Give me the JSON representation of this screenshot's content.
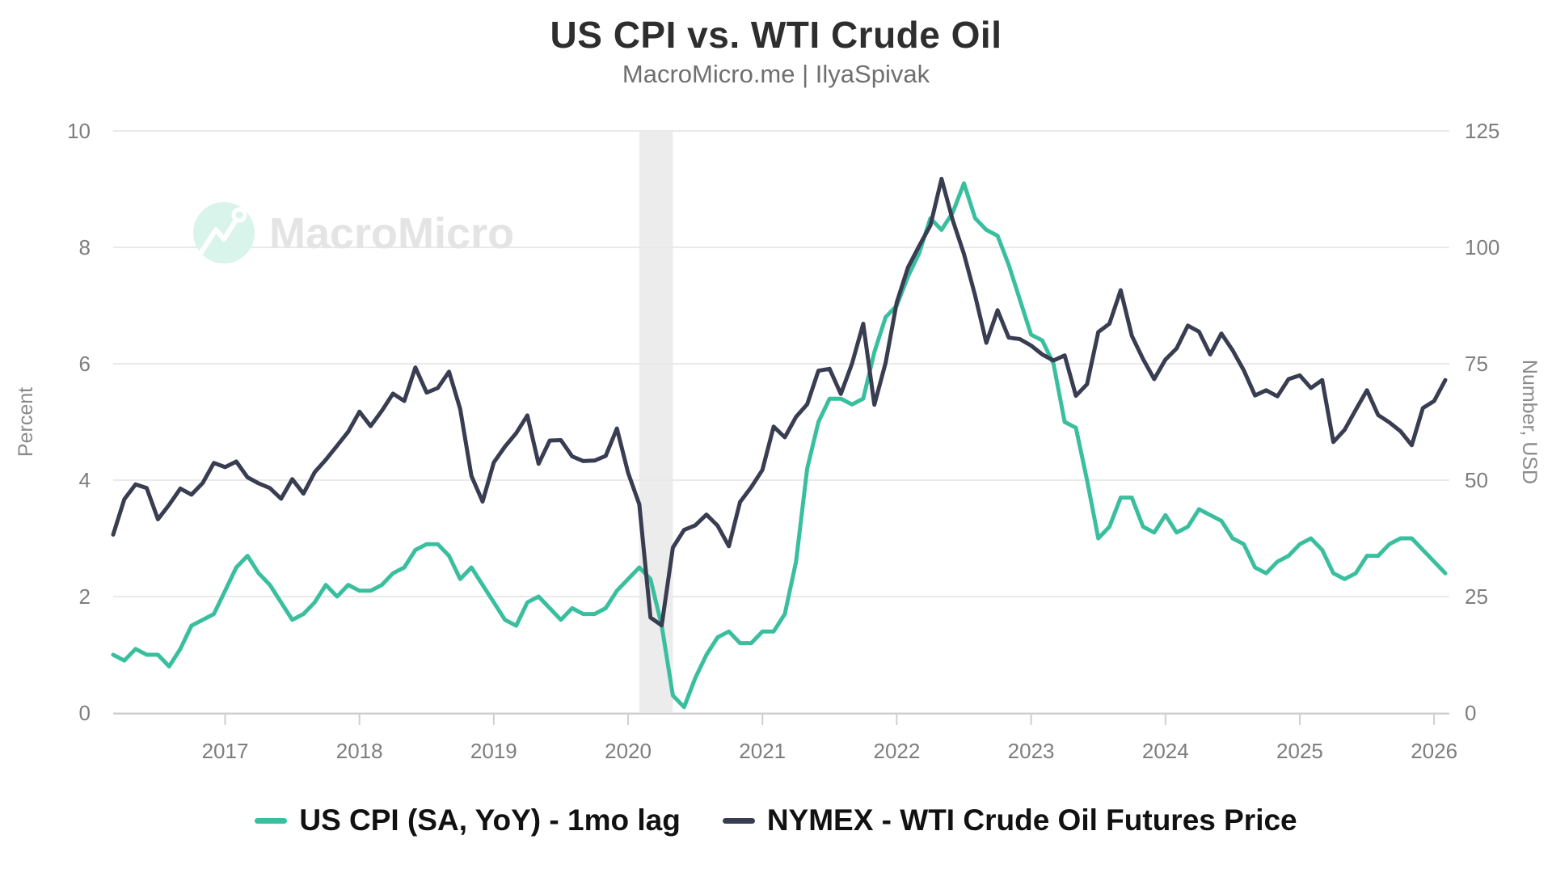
{
  "header": {
    "title": "US CPI vs. WTI Crude Oil",
    "subtitle": "MacroMicro.me | IlyaSpivak"
  },
  "watermark": {
    "text": "MacroMicro"
  },
  "colors": {
    "cpi": "#3abf9e",
    "oil": "#383d52",
    "gridline": "#e9e9e9",
    "axis_line": "#cfcfcf",
    "tick_text": "#7e7e7e",
    "recession_band": "#ececec",
    "watermark_circle": "#d9f4eb",
    "watermark_text": "#e4e4e4"
  },
  "axes": {
    "left": {
      "label": "Percent",
      "ticks": [
        0,
        2,
        4,
        6,
        8,
        10
      ],
      "range": [
        0,
        10
      ]
    },
    "right": {
      "label": "Number, USD",
      "ticks": [
        0,
        25,
        50,
        75,
        100,
        125
      ],
      "range": [
        0,
        125
      ]
    },
    "x": {
      "ticks": [
        2017,
        2018,
        2019,
        2020,
        2021,
        2022,
        2023,
        2024,
        2025,
        2026
      ]
    }
  },
  "legend": [
    {
      "label": "US CPI (SA, YoY) - 1mo lag",
      "color": "#3abf9e"
    },
    {
      "label": "NYMEX - WTI Crude Oil Futures Price",
      "color": "#383d52"
    }
  ],
  "chart_data": {
    "type": "line",
    "title": "US CPI vs. WTI Crude Oil",
    "frequency": "monthly",
    "x_start": "2016-03",
    "x_end": "2026-02",
    "grid": "horizontal-only",
    "legend_position": "bottom",
    "recession_band": {
      "from": "2020-02",
      "to": "2020-05"
    },
    "series": [
      {
        "name": "US CPI (SA, YoY) - 1mo lag",
        "axis": "left",
        "unit": "percent",
        "color": "#3abf9e",
        "values": [
          1.0,
          0.9,
          1.1,
          1.0,
          1.0,
          0.8,
          1.1,
          1.5,
          1.6,
          1.7,
          2.1,
          2.5,
          2.7,
          2.4,
          2.2,
          1.9,
          1.6,
          1.7,
          1.9,
          2.2,
          2.0,
          2.2,
          2.1,
          2.1,
          2.2,
          2.4,
          2.5,
          2.8,
          2.9,
          2.9,
          2.7,
          2.3,
          2.5,
          2.2,
          1.9,
          1.6,
          1.5,
          1.9,
          2.0,
          1.8,
          1.6,
          1.8,
          1.7,
          1.7,
          1.8,
          2.1,
          2.3,
          2.5,
          2.3,
          1.5,
          0.3,
          0.1,
          0.6,
          1.0,
          1.3,
          1.4,
          1.2,
          1.2,
          1.4,
          1.4,
          1.7,
          2.6,
          4.2,
          5.0,
          5.4,
          5.4,
          5.3,
          5.4,
          6.2,
          6.8,
          7.0,
          7.5,
          7.9,
          8.5,
          8.3,
          8.6,
          9.1,
          8.5,
          8.3,
          8.2,
          7.7,
          7.1,
          6.5,
          6.4,
          6.0,
          5.0,
          4.9,
          4.0,
          3.0,
          3.2,
          3.7,
          3.7,
          3.2,
          3.1,
          3.4,
          3.1,
          3.2,
          3.5,
          3.4,
          3.3,
          3.0,
          2.9,
          2.5,
          2.4,
          2.6,
          2.7,
          2.9,
          3.0,
          2.8,
          2.4,
          2.3,
          2.4,
          2.7,
          2.7,
          2.9,
          3.0,
          3.0,
          2.8,
          2.6,
          2.4
        ]
      },
      {
        "name": "NYMEX - WTI Crude Oil Futures Price",
        "axis": "right",
        "unit": "USD",
        "color": "#383d52",
        "values": [
          38.3,
          45.9,
          49.1,
          48.3,
          41.6,
          44.7,
          48.2,
          46.9,
          49.4,
          53.7,
          52.8,
          54.0,
          50.6,
          49.3,
          48.3,
          46.0,
          50.2,
          47.1,
          51.7,
          54.4,
          57.4,
          60.4,
          64.7,
          61.6,
          64.9,
          68.6,
          67.0,
          74.2,
          68.8,
          69.8,
          73.3,
          65.3,
          50.9,
          45.4,
          53.8,
          57.2,
          60.1,
          63.9,
          53.5,
          58.5,
          58.6,
          55.1,
          54.1,
          54.2,
          55.2,
          61.1,
          51.6,
          44.8,
          20.5,
          18.8,
          35.5,
          39.3,
          40.3,
          42.6,
          40.2,
          35.8,
          45.3,
          48.5,
          52.2,
          61.5,
          59.2,
          63.6,
          66.3,
          73.5,
          73.9,
          68.5,
          75.0,
          83.6,
          66.2,
          75.2,
          88.2,
          95.7,
          100.3,
          104.7,
          114.7,
          105.8,
          98.6,
          89.6,
          79.5,
          86.5,
          80.6,
          80.3,
          78.9,
          77.0,
          75.7,
          76.8,
          68.1,
          70.6,
          81.8,
          83.6,
          90.8,
          81.0,
          76.0,
          71.7,
          75.9,
          78.3,
          83.2,
          81.9,
          77.0,
          81.5,
          77.9,
          73.6,
          68.2,
          69.3,
          68.0,
          71.7,
          72.5,
          69.8,
          71.5,
          58.2,
          60.8,
          65.1,
          69.3,
          64.0,
          62.4,
          60.5,
          57.5,
          65.5,
          67.0,
          71.5
        ]
      }
    ]
  }
}
